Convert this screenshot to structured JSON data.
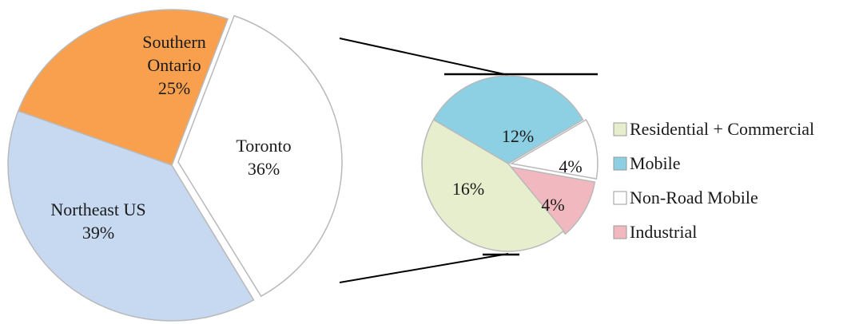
{
  "chart_data": [
    {
      "type": "pie",
      "categories": [
        "Southern Ontario",
        "Toronto",
        "Northeast US"
      ],
      "values": [
        25,
        36,
        39
      ],
      "labels": [
        {
          "lines": [
            "Southern",
            "Ontario",
            "25%"
          ]
        },
        {
          "lines": [
            "Toronto",
            "36%"
          ]
        },
        {
          "lines": [
            "Northeast US",
            "39%"
          ]
        }
      ],
      "colors": [
        "#f9a04f",
        "#ffffff",
        "#c6d9f1"
      ]
    },
    {
      "type": "pie",
      "categories": [
        "Mobile",
        "Non-Road Mobile",
        "Industrial",
        "Residential + Commercial"
      ],
      "values": [
        12,
        4,
        4,
        16
      ],
      "labels": [
        "12%",
        "4%",
        "4%",
        "16%"
      ],
      "colors": [
        "#8dd0e3",
        "#ffffff",
        "#f2b8c0",
        "#e6eecd"
      ],
      "legend": {
        "position": "right",
        "entries": [
          {
            "name": "Residential + Commercial",
            "color": "#e6eecd"
          },
          {
            "name": "Mobile",
            "color": "#8dd0e3"
          },
          {
            "name": "Non-Road Mobile",
            "color": "#ffffff"
          },
          {
            "name": "Industrial",
            "color": "#f2b8c0"
          }
        ]
      }
    }
  ]
}
